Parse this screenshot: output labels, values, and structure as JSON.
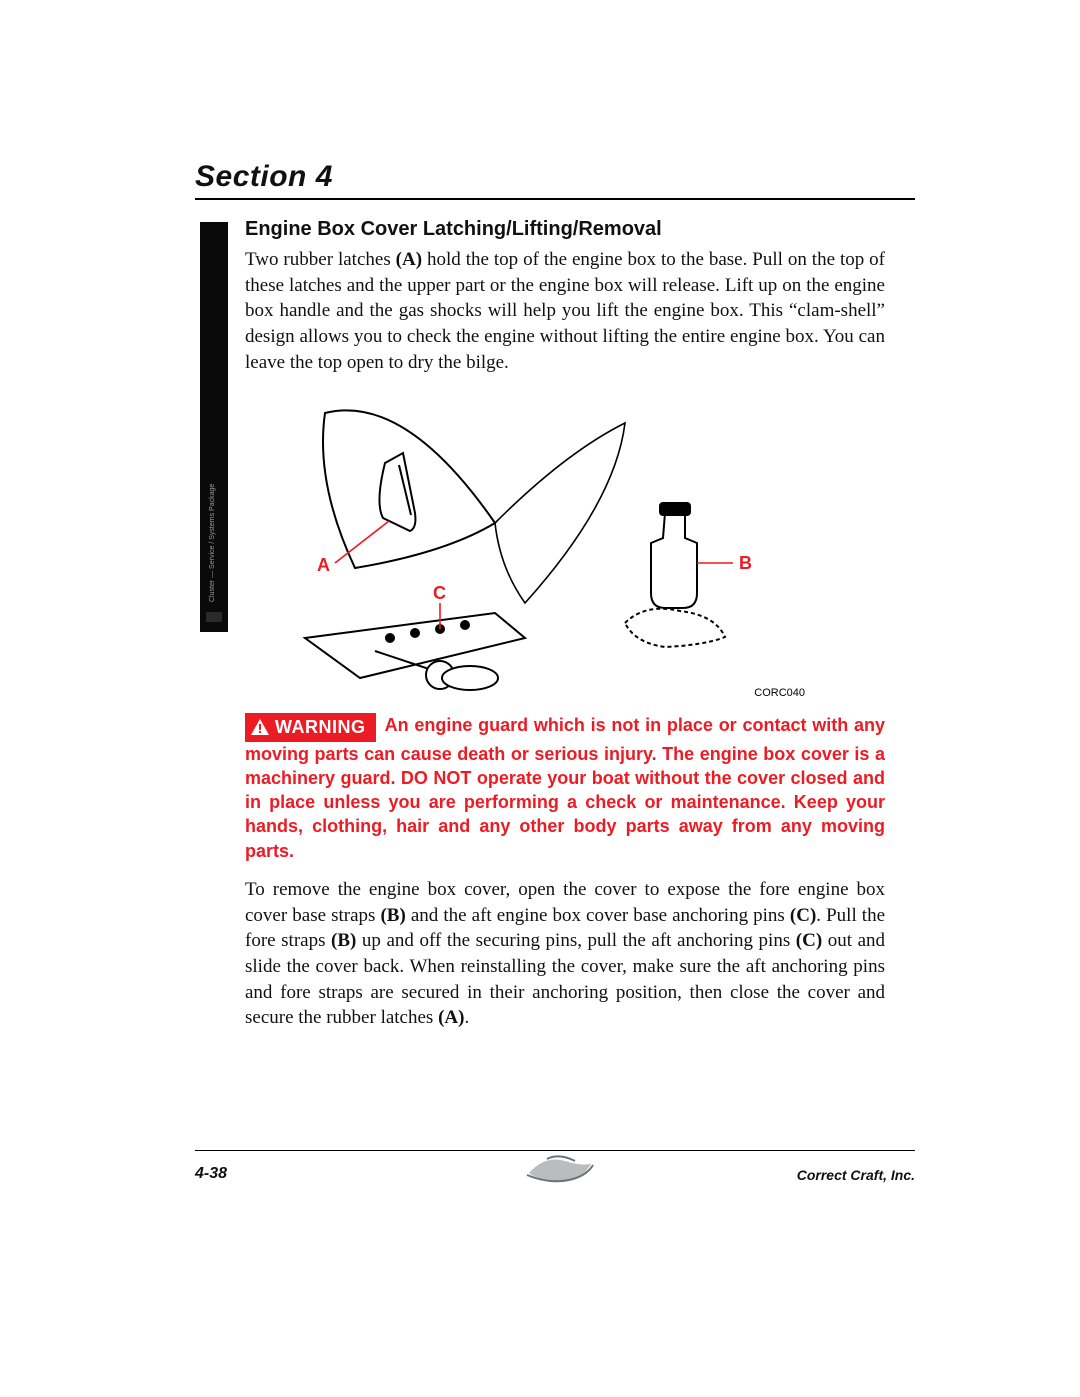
{
  "section_title": "Section 4",
  "heading": "Engine Box Cover Latching/Lifting/Removal",
  "para1_parts": [
    {
      "t": "Two rubber latches "
    },
    {
      "t": "(A)",
      "b": true
    },
    {
      "t": " hold the top of the engine box to the base. Pull on the top of these latches and the upper part or the engine box will release. Lift up on the engine box handle and the gas shocks will help you lift the engine box. This “clam-shell” design allows you to check the engine without lifting the entire engine box. You can leave the top open to dry the bilge."
    }
  ],
  "figure": {
    "code": "CORC040",
    "labels": {
      "A": "A",
      "B": "B",
      "C": "C"
    },
    "label_color": "#ec1c24",
    "stroke": "#000000"
  },
  "sidebar_caption": "Cluster — Service / Systems Package",
  "warning": {
    "badge": "WARNING",
    "badge_bg": "#ec1c24",
    "badge_fg": "#ffffff",
    "text": "An engine guard which is not in place or contact with any moving parts can cause death or serious injury. The engine box cover is a machinery guard. DO NOT operate your boat without the cover closed and in place unless you are performing a check or maintenance. Keep your hands, clothing, hair and any other body parts away from any moving parts.",
    "text_color": "#ec1c24"
  },
  "para2_parts": [
    {
      "t": "To remove the engine box cover, open the cover to expose the fore engine box cover base straps "
    },
    {
      "t": "(B)",
      "b": true
    },
    {
      "t": " and the aft engine box cover base anchoring pins "
    },
    {
      "t": "(C)",
      "b": true
    },
    {
      "t": ". Pull the fore straps "
    },
    {
      "t": "(B)",
      "b": true
    },
    {
      "t": " up and off the securing pins, pull the aft anchoring pins "
    },
    {
      "t": "(C)",
      "b": true
    },
    {
      "t": " out and slide the cover back. When reinstalling the cover, make sure the aft anchoring pins and fore straps are secured in their anchoring position, then close the cover and secure the rubber latches "
    },
    {
      "t": "(A)",
      "b": true
    },
    {
      "t": "."
    }
  ],
  "footer": {
    "page": "4-38",
    "company": "Correct Craft, Inc."
  }
}
